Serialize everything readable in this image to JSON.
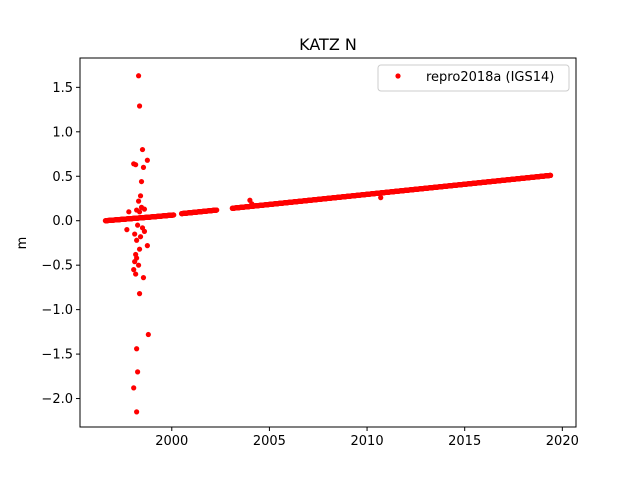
{
  "chart_data": {
    "type": "scatter",
    "title": "KATZ N",
    "xlabel": "",
    "ylabel": "m",
    "xlim": [
      1995.3,
      2020.7
    ],
    "ylim": [
      -2.32,
      1.83
    ],
    "x_ticks": [
      2000,
      2005,
      2010,
      2015,
      2020
    ],
    "y_ticks": [
      -2.0,
      -1.5,
      -1.0,
      -0.5,
      0.0,
      0.5,
      1.0,
      1.5
    ],
    "y_tick_labels": [
      "−2.0",
      "−1.5",
      "−1.0",
      "−0.5",
      "0.0",
      "0.5",
      "1.0",
      "1.5"
    ],
    "grid": false,
    "legend_position": "upper right",
    "marker_color": "#ff0000",
    "series": [
      {
        "name": "repro2018a (IGS14)",
        "trend_segments": [
          {
            "x_start": 1996.6,
            "x_end": 1999.1,
            "y_start": 0.0,
            "y_end": 0.045
          },
          {
            "x_start": 1999.1,
            "x_end": 2000.1,
            "y_start": 0.045,
            "y_end": 0.065
          },
          {
            "x_start": 2000.5,
            "x_end": 2002.3,
            "y_start": 0.08,
            "y_end": 0.12
          },
          {
            "x_start": 2003.1,
            "x_end": 2019.4,
            "y_start": 0.14,
            "y_end": 0.51
          }
        ],
        "outliers": [
          {
            "x": 1998.3,
            "y": 1.63
          },
          {
            "x": 1998.35,
            "y": 1.29
          },
          {
            "x": 1998.5,
            "y": 0.8
          },
          {
            "x": 1998.75,
            "y": 0.68
          },
          {
            "x": 1998.05,
            "y": 0.64
          },
          {
            "x": 1998.15,
            "y": 0.63
          },
          {
            "x": 1998.55,
            "y": 0.6
          },
          {
            "x": 1998.45,
            "y": 0.44
          },
          {
            "x": 1998.4,
            "y": 0.28
          },
          {
            "x": 1998.3,
            "y": 0.22
          },
          {
            "x": 1998.45,
            "y": 0.15
          },
          {
            "x": 1998.2,
            "y": 0.12
          },
          {
            "x": 1998.35,
            "y": 0.1
          },
          {
            "x": 1997.8,
            "y": 0.1
          },
          {
            "x": 1998.6,
            "y": 0.13
          },
          {
            "x": 1998.25,
            "y": -0.05
          },
          {
            "x": 1998.5,
            "y": -0.08
          },
          {
            "x": 1998.6,
            "y": -0.12
          },
          {
            "x": 1997.7,
            "y": -0.1
          },
          {
            "x": 1998.1,
            "y": -0.15
          },
          {
            "x": 1998.2,
            "y": -0.22
          },
          {
            "x": 1998.4,
            "y": -0.18
          },
          {
            "x": 1998.75,
            "y": -0.28
          },
          {
            "x": 1998.35,
            "y": -0.32
          },
          {
            "x": 1998.15,
            "y": -0.38
          },
          {
            "x": 1998.2,
            "y": -0.42
          },
          {
            "x": 1998.1,
            "y": -0.46
          },
          {
            "x": 1998.3,
            "y": -0.5
          },
          {
            "x": 1998.05,
            "y": -0.55
          },
          {
            "x": 1998.15,
            "y": -0.6
          },
          {
            "x": 1998.55,
            "y": -0.64
          },
          {
            "x": 1998.35,
            "y": -0.82
          },
          {
            "x": 1998.8,
            "y": -1.28
          },
          {
            "x": 1998.2,
            "y": -1.44
          },
          {
            "x": 1998.25,
            "y": -1.7
          },
          {
            "x": 1998.05,
            "y": -1.88
          },
          {
            "x": 1998.2,
            "y": -2.15
          },
          {
            "x": 2004.0,
            "y": 0.23
          },
          {
            "x": 2004.1,
            "y": 0.19
          },
          {
            "x": 2010.7,
            "y": 0.26
          }
        ]
      }
    ]
  }
}
